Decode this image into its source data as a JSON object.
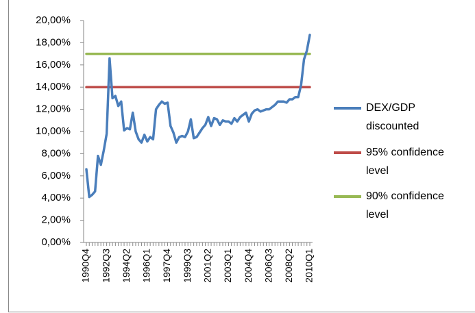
{
  "chart_data": {
    "type": "line",
    "categories": [
      "1990Q4",
      null,
      null,
      null,
      null,
      null,
      null,
      "1992Q3",
      null,
      null,
      null,
      null,
      null,
      null,
      "1994Q2",
      null,
      null,
      null,
      null,
      null,
      null,
      "1996Q1",
      null,
      null,
      null,
      null,
      null,
      null,
      "1997Q4",
      null,
      null,
      null,
      null,
      null,
      null,
      "1999Q3",
      null,
      null,
      null,
      null,
      null,
      null,
      "2001Q2",
      null,
      null,
      null,
      null,
      null,
      null,
      "2003Q1",
      null,
      null,
      null,
      null,
      null,
      null,
      "2004Q4",
      null,
      null,
      null,
      null,
      null,
      null,
      "2006Q3",
      null,
      null,
      null,
      null,
      null,
      null,
      "2008Q2",
      null,
      null,
      null,
      null,
      null,
      null,
      "2010Q1"
    ],
    "series": [
      {
        "name": "DEX/GDP discounted",
        "color": "#4a7ebb",
        "values": [
          6.6,
          4.1,
          4.3,
          4.6,
          7.8,
          7.0,
          8.3,
          9.8,
          16.6,
          13.0,
          13.2,
          12.3,
          12.7,
          10.1,
          10.3,
          10.2,
          11.7,
          10.0,
          9.3,
          9.0,
          9.7,
          9.1,
          9.5,
          9.3,
          12.0,
          12.4,
          12.7,
          12.5,
          12.6,
          10.5,
          9.9,
          9.0,
          9.5,
          9.6,
          9.5,
          10.0,
          11.1,
          9.4,
          9.5,
          9.9,
          10.3,
          10.6,
          11.3,
          10.5,
          11.2,
          11.1,
          10.6,
          11.0,
          10.9,
          10.9,
          10.7,
          11.2,
          10.9,
          11.3,
          11.5,
          11.7,
          10.9,
          11.6,
          11.9,
          12.0,
          11.8,
          11.9,
          12.0,
          12.0,
          12.2,
          12.4,
          12.7,
          12.7,
          12.7,
          12.6,
          12.9,
          12.9,
          13.1,
          13.1,
          14.2,
          16.5,
          17.3,
          18.7
        ]
      },
      {
        "name": "95% confidence level",
        "color": "#be4b48",
        "values": [
          14,
          14,
          14,
          14,
          14,
          14,
          14,
          14,
          14,
          14,
          14,
          14,
          14,
          14,
          14,
          14,
          14,
          14,
          14,
          14,
          14,
          14,
          14,
          14,
          14,
          14,
          14,
          14,
          14,
          14,
          14,
          14,
          14,
          14,
          14,
          14,
          14,
          14,
          14,
          14,
          14,
          14,
          14,
          14,
          14,
          14,
          14,
          14,
          14,
          14,
          14,
          14,
          14,
          14,
          14,
          14,
          14,
          14,
          14,
          14,
          14,
          14,
          14,
          14,
          14,
          14,
          14,
          14,
          14,
          14,
          14,
          14,
          14,
          14,
          14,
          14,
          14,
          14
        ]
      },
      {
        "name": "90% confidence level",
        "color": "#98b954",
        "values": [
          17,
          17,
          17,
          17,
          17,
          17,
          17,
          17,
          17,
          17,
          17,
          17,
          17,
          17,
          17,
          17,
          17,
          17,
          17,
          17,
          17,
          17,
          17,
          17,
          17,
          17,
          17,
          17,
          17,
          17,
          17,
          17,
          17,
          17,
          17,
          17,
          17,
          17,
          17,
          17,
          17,
          17,
          17,
          17,
          17,
          17,
          17,
          17,
          17,
          17,
          17,
          17,
          17,
          17,
          17,
          17,
          17,
          17,
          17,
          17,
          17,
          17,
          17,
          17,
          17,
          17,
          17,
          17,
          17,
          17,
          17,
          17,
          17,
          17,
          17,
          17,
          17,
          17
        ]
      }
    ],
    "ylim": [
      0,
      20
    ],
    "yticks": [
      {
        "value": 0,
        "label": "0,00%"
      },
      {
        "value": 2,
        "label": "2,00%"
      },
      {
        "value": 4,
        "label": "4,00%"
      },
      {
        "value": 6,
        "label": "6,00%"
      },
      {
        "value": 8,
        "label": "8,00%"
      },
      {
        "value": 10,
        "label": "10,00%"
      },
      {
        "value": 12,
        "label": "12,00%"
      },
      {
        "value": 14,
        "label": "14,00%"
      },
      {
        "value": 16,
        "label": "16,00%"
      },
      {
        "value": 18,
        "label": "18,00%"
      },
      {
        "value": 20,
        "label": "20,00%"
      }
    ],
    "grid": false,
    "legend": "right"
  }
}
